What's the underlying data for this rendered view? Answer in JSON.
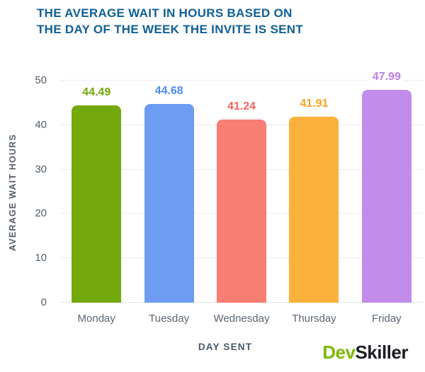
{
  "title": {
    "line1": "THE AVERAGE WAIT IN HOURS BASED ON",
    "line2": "THE DAY OF THE WEEK THE INVITE IS SENT"
  },
  "chart_data": {
    "type": "bar",
    "title": "THE AVERAGE WAIT IN HOURS BASED ON THE DAY OF THE WEEK THE INVITE IS SENT",
    "categories": [
      "Monday",
      "Tuesday",
      "Wednesday",
      "Thursday",
      "Friday"
    ],
    "values": [
      44.49,
      44.68,
      41.24,
      41.91,
      47.99
    ],
    "value_labels": [
      "44.49",
      "44.68",
      "41.24",
      "41.91",
      "47.99"
    ],
    "bar_colors": [
      "#74A90B",
      "#6D9CF2",
      "#F87D72",
      "#FBB23D",
      "#C28CEA"
    ],
    "value_label_colors": [
      "#73A70A",
      "#4F8CF0",
      "#F8645C",
      "#FAA41F",
      "#BE81EA"
    ],
    "xlabel": "DAY SENT",
    "ylabel": "AVERAGE WAIT HOURS",
    "ylim": [
      0,
      50
    ],
    "yticks": [
      0,
      10,
      20,
      30,
      40,
      50
    ],
    "grid": true,
    "legend": false
  },
  "colors": {
    "title": "#0F5F96",
    "grid": "#ECECEF",
    "baseline": "#E2E2E7",
    "tick_label": "#525D68",
    "axis_title": "#47586B"
  },
  "branding": {
    "logo_part1": "Dev",
    "logo_part2": "Skiller",
    "logo_part1_color": "#7CB700",
    "logo_part2_color": "#1B1C25"
  }
}
